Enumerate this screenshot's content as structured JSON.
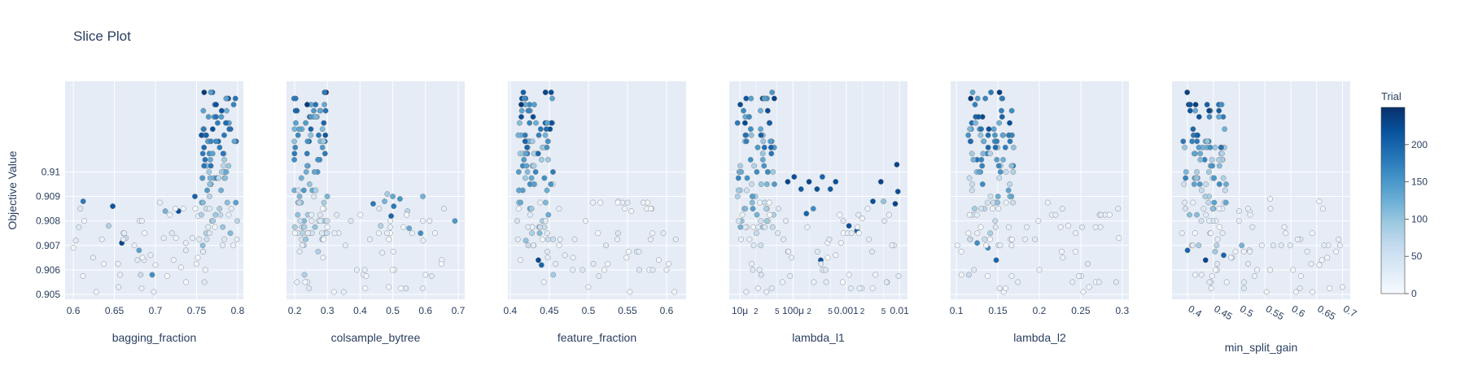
{
  "title": "Slice Plot",
  "colors": {
    "plot_bg": "#E5ECF6",
    "grid": "#ffffff",
    "text": "#2a3f5f",
    "colorscale": [
      "#F7FBFF",
      "#DEEBF7",
      "#C6DBEF",
      "#9ECAE1",
      "#6BAED6",
      "#4292C6",
      "#2171B5",
      "#08519C",
      "#08306B"
    ]
  },
  "colorbar": {
    "title": "Trial",
    "ticks": [
      "200",
      "150",
      "100",
      "50",
      "0"
    ],
    "range": [
      0,
      250
    ]
  },
  "chart_data": [
    {
      "type": "scatter",
      "xlabel": "bagging_fraction",
      "ylabel": "Objective Value",
      "xlim": [
        0.59,
        0.807
      ],
      "ylim": [
        0.9048,
        0.9137
      ],
      "x_scale": "linear",
      "xticks": [
        {
          "v": 0.6,
          "label": "0.6"
        },
        {
          "v": 0.65,
          "label": "0.65"
        },
        {
          "v": 0.7,
          "label": "0.7"
        },
        {
          "v": 0.75,
          "label": "0.75"
        },
        {
          "v": 0.8,
          "label": "0.8"
        }
      ],
      "yticks": [
        {
          "v": 0.905,
          "label": "0.905"
        },
        {
          "v": 0.906,
          "label": "0.906"
        },
        {
          "v": 0.907,
          "label": "0.907"
        },
        {
          "v": 0.908,
          "label": "0.908"
        },
        {
          "v": 0.909,
          "label": "0.909"
        },
        {
          "v": 0.91,
          "label": "0.91"
        }
      ],
      "tick_rotate": 0,
      "seed": 11,
      "focus_x": [
        0.755,
        0.8
      ],
      "focus_y": [
        0.9068,
        0.9133
      ],
      "focus_n": 95,
      "spread_n": 38,
      "points": [
        [
          0.612,
          0.9088,
          180
        ],
        [
          0.648,
          0.9086,
          215
        ],
        [
          0.6,
          0.9069,
          10
        ],
        [
          0.603,
          0.9072,
          30
        ],
        [
          0.628,
          0.9051,
          10
        ],
        [
          0.643,
          0.9078,
          80
        ],
        [
          0.659,
          0.9071,
          230
        ],
        [
          0.664,
          0.9073,
          60
        ],
        [
          0.68,
          0.9068,
          140
        ],
        [
          0.655,
          0.9053,
          20
        ],
        [
          0.657,
          0.9058,
          20
        ],
        [
          0.678,
          0.9064,
          30
        ],
        [
          0.686,
          0.9064,
          20
        ],
        [
          0.682,
          0.9058,
          60
        ],
        [
          0.696,
          0.9058,
          160
        ],
        [
          0.698,
          0.9051,
          20
        ],
        [
          0.7,
          0.9062,
          10
        ],
        [
          0.694,
          0.9066,
          20
        ],
        [
          0.71,
          0.9073,
          20
        ],
        [
          0.712,
          0.9084,
          120
        ],
        [
          0.722,
          0.9064,
          10
        ],
        [
          0.725,
          0.9073,
          10
        ],
        [
          0.728,
          0.9084,
          220
        ],
        [
          0.731,
          0.9061,
          10
        ],
        [
          0.737,
          0.9068,
          30
        ],
        [
          0.745,
          0.9073,
          20
        ],
        [
          0.748,
          0.909,
          200
        ],
        [
          0.752,
          0.9082,
          20
        ],
        [
          0.737,
          0.9071,
          20
        ]
      ]
    },
    {
      "type": "scatter",
      "xlabel": "colsample_bytree",
      "ylabel": "",
      "xlim": [
        0.175,
        0.72
      ],
      "ylim": [
        0.9048,
        0.9137
      ],
      "x_scale": "linear",
      "xticks": [
        {
          "v": 0.2,
          "label": "0.2"
        },
        {
          "v": 0.3,
          "label": "0.3"
        },
        {
          "v": 0.4,
          "label": "0.4"
        },
        {
          "v": 0.5,
          "label": "0.5"
        },
        {
          "v": 0.6,
          "label": "0.6"
        },
        {
          "v": 0.7,
          "label": "0.7"
        }
      ],
      "yticks": [
        {
          "v": 0.905,
          "label": ""
        },
        {
          "v": 0.906,
          "label": ""
        },
        {
          "v": 0.907,
          "label": ""
        },
        {
          "v": 0.908,
          "label": ""
        },
        {
          "v": 0.909,
          "label": ""
        },
        {
          "v": 0.91,
          "label": ""
        }
      ],
      "tick_rotate": 0,
      "seed": 23,
      "focus_x": [
        0.195,
        0.3
      ],
      "focus_y": [
        0.9068,
        0.9133
      ],
      "focus_n": 95,
      "spread_n": 45,
      "points": [
        [
          0.44,
          0.9087,
          180
        ],
        [
          0.475,
          0.9088,
          120
        ],
        [
          0.483,
          0.9091,
          90
        ],
        [
          0.5,
          0.909,
          130
        ],
        [
          0.503,
          0.9086,
          180
        ],
        [
          0.522,
          0.9089,
          150
        ],
        [
          0.592,
          0.909,
          120
        ],
        [
          0.495,
          0.9082,
          200
        ],
        [
          0.545,
          0.9084,
          70
        ],
        [
          0.55,
          0.9077,
          130
        ],
        [
          0.585,
          0.9075,
          160
        ],
        [
          0.593,
          0.9072,
          20
        ],
        [
          0.69,
          0.908,
          150
        ],
        [
          0.463,
          0.9078,
          80
        ],
        [
          0.468,
          0.9067,
          20
        ],
        [
          0.488,
          0.9053,
          10
        ],
        [
          0.6,
          0.9058,
          10
        ],
        [
          0.65,
          0.9064,
          10
        ],
        [
          0.41,
          0.9058,
          20
        ],
        [
          0.39,
          0.906,
          20
        ],
        [
          0.35,
          0.9051,
          20
        ],
        [
          0.32,
          0.9051,
          10
        ],
        [
          0.23,
          0.9058,
          80
        ]
      ]
    },
    {
      "type": "scatter",
      "xlabel": "feature_fraction",
      "ylabel": "",
      "xlim": [
        0.397,
        0.625
      ],
      "ylim": [
        0.9048,
        0.9137
      ],
      "x_scale": "linear",
      "xticks": [
        {
          "v": 0.4,
          "label": "0.4"
        },
        {
          "v": 0.45,
          "label": "0.45"
        },
        {
          "v": 0.5,
          "label": "0.5"
        },
        {
          "v": 0.55,
          "label": "0.55"
        },
        {
          "v": 0.6,
          "label": "0.6"
        }
      ],
      "yticks": [
        {
          "v": 0.905,
          "label": ""
        },
        {
          "v": 0.906,
          "label": ""
        },
        {
          "v": 0.907,
          "label": ""
        },
        {
          "v": 0.908,
          "label": ""
        },
        {
          "v": 0.909,
          "label": ""
        },
        {
          "v": 0.91,
          "label": ""
        }
      ],
      "tick_rotate": 0,
      "seed": 37,
      "focus_x": [
        0.408,
        0.455
      ],
      "focus_y": [
        0.9068,
        0.9133
      ],
      "focus_n": 100,
      "spread_n": 45,
      "points": [
        [
          0.555,
          0.9084,
          10
        ],
        [
          0.575,
          0.9085,
          10
        ],
        [
          0.538,
          0.9088,
          10
        ],
        [
          0.582,
          0.9075,
          10
        ],
        [
          0.5,
          0.9053,
          10
        ],
        [
          0.553,
          0.9051,
          10
        ],
        [
          0.61,
          0.9051,
          10
        ],
        [
          0.6,
          0.906,
          10
        ],
        [
          0.455,
          0.9058,
          90
        ],
        [
          0.44,
          0.9062,
          200
        ],
        [
          0.436,
          0.9064,
          230
        ],
        [
          0.413,
          0.9064,
          10
        ],
        [
          0.42,
          0.9072,
          100
        ],
        [
          0.43,
          0.907,
          230
        ],
        [
          0.47,
          0.9066,
          20
        ],
        [
          0.48,
          0.906,
          20
        ],
        [
          0.59,
          0.9064,
          10
        ]
      ]
    },
    {
      "type": "scatter",
      "xlabel": "lambda_l1",
      "ylabel": "",
      "xlim": [
        -5.2,
        -1.85
      ],
      "ylim": [
        0.9048,
        0.9137
      ],
      "x_scale": "log",
      "xticks": [
        {
          "v": -5,
          "label": "10μ"
        },
        {
          "v": -4.699,
          "label": "2"
        },
        {
          "v": -4.301,
          "label": "5"
        },
        {
          "v": -4,
          "label": "100μ"
        },
        {
          "v": -3.699,
          "label": "2"
        },
        {
          "v": -3.301,
          "label": "5"
        },
        {
          "v": -3,
          "label": "0.001"
        },
        {
          "v": -2.699,
          "label": "2"
        },
        {
          "v": -2.301,
          "label": "5"
        },
        {
          "v": -2,
          "label": "0.01"
        }
      ],
      "yticks": [
        {
          "v": 0.905,
          "label": ""
        },
        {
          "v": 0.906,
          "label": ""
        },
        {
          "v": 0.907,
          "label": ""
        },
        {
          "v": 0.908,
          "label": ""
        },
        {
          "v": 0.909,
          "label": ""
        },
        {
          "v": 0.91,
          "label": ""
        }
      ],
      "tick_rotate": 0,
      "seed": 53,
      "focus_x": [
        -5.05,
        -4.35
      ],
      "focus_y": [
        0.9068,
        0.9133
      ],
      "focus_n": 90,
      "spread_n": 50,
      "points": [
        [
          -4.1,
          0.9096,
          230
        ],
        [
          -3.98,
          0.9098,
          220
        ],
        [
          -3.85,
          0.9093,
          210
        ],
        [
          -3.7,
          0.9096,
          230
        ],
        [
          -3.55,
          0.9093,
          220
        ],
        [
          -3.45,
          0.9098,
          200
        ],
        [
          -3.3,
          0.9093,
          210
        ],
        [
          -3.2,
          0.9096,
          220
        ],
        [
          -3.62,
          0.9085,
          160
        ],
        [
          -3.75,
          0.9083,
          200
        ],
        [
          -2.35,
          0.9096,
          230
        ],
        [
          -2.05,
          0.9103,
          230
        ],
        [
          -2.03,
          0.9092,
          220
        ],
        [
          -2.08,
          0.9087,
          230
        ],
        [
          -2.5,
          0.9088,
          220
        ],
        [
          -2.6,
          0.9085,
          10
        ],
        [
          -2.7,
          0.9081,
          10
        ],
        [
          -2.8,
          0.9076,
          200
        ],
        [
          -2.95,
          0.9078,
          220
        ],
        [
          -2.3,
          0.9088,
          100
        ],
        [
          -3.48,
          0.9064,
          220
        ],
        [
          -3.2,
          0.9066,
          10
        ],
        [
          -2.95,
          0.9058,
          10
        ],
        [
          -2.45,
          0.9058,
          10
        ],
        [
          -3.1,
          0.9071,
          10
        ],
        [
          -3.35,
          0.9071,
          10
        ],
        [
          -4.5,
          0.9051,
          20
        ],
        [
          -4.88,
          0.9051,
          20
        ],
        [
          -4.6,
          0.9058,
          40
        ]
      ]
    },
    {
      "type": "scatter",
      "xlabel": "lambda_l2",
      "ylabel": "",
      "xlim": [
        0.093,
        0.308
      ],
      "ylim": [
        0.9048,
        0.9137
      ],
      "x_scale": "linear",
      "xticks": [
        {
          "v": 0.1,
          "label": "0.1"
        },
        {
          "v": 0.15,
          "label": "0.15"
        },
        {
          "v": 0.2,
          "label": "0.2"
        },
        {
          "v": 0.25,
          "label": "0.25"
        },
        {
          "v": 0.3,
          "label": "0.3"
        }
      ],
      "yticks": [
        {
          "v": 0.905,
          "label": ""
        },
        {
          "v": 0.906,
          "label": ""
        },
        {
          "v": 0.907,
          "label": ""
        },
        {
          "v": 0.908,
          "label": ""
        },
        {
          "v": 0.909,
          "label": ""
        },
        {
          "v": 0.91,
          "label": ""
        }
      ],
      "tick_rotate": 0,
      "seed": 71,
      "focus_x": [
        0.113,
        0.17
      ],
      "focus_y": [
        0.9068,
        0.9133
      ],
      "focus_n": 100,
      "spread_n": 45,
      "points": [
        [
          0.115,
          0.9058,
          60
        ],
        [
          0.106,
          0.9058,
          10
        ],
        [
          0.148,
          0.9064,
          200
        ],
        [
          0.138,
          0.9069,
          160
        ],
        [
          0.157,
          0.9051,
          10
        ],
        [
          0.253,
          0.9051,
          10
        ],
        [
          0.26,
          0.9053,
          10
        ],
        [
          0.296,
          0.9073,
          10
        ],
        [
          0.235,
          0.9078,
          10
        ],
        [
          0.2,
          0.906,
          10
        ],
        [
          0.101,
          0.907,
          10
        ],
        [
          0.125,
          0.9071,
          160
        ]
      ]
    },
    {
      "type": "scatter",
      "xlabel": "min_split_gain",
      "ylabel": "",
      "xlim": [
        0.37,
        0.715
      ],
      "ylim": [
        0.9048,
        0.9137
      ],
      "x_scale": "linear",
      "xticks": [
        {
          "v": 0.4,
          "label": "0.4"
        },
        {
          "v": 0.45,
          "label": "0.45"
        },
        {
          "v": 0.5,
          "label": "0.5"
        },
        {
          "v": 0.55,
          "label": "0.55"
        },
        {
          "v": 0.6,
          "label": "0.6"
        },
        {
          "v": 0.65,
          "label": "0.65"
        },
        {
          "v": 0.7,
          "label": "0.7"
        }
      ],
      "yticks": [
        {
          "v": 0.905,
          "label": ""
        },
        {
          "v": 0.906,
          "label": ""
        },
        {
          "v": 0.907,
          "label": ""
        },
        {
          "v": 0.908,
          "label": ""
        },
        {
          "v": 0.909,
          "label": ""
        },
        {
          "v": 0.91,
          "label": ""
        }
      ],
      "tick_rotate": 30,
      "seed": 89,
      "focus_x": [
        0.39,
        0.475
      ],
      "focus_y": [
        0.9068,
        0.9133
      ],
      "focus_n": 95,
      "spread_n": 55,
      "points": [
        [
          0.56,
          0.9089,
          10
        ],
        [
          0.655,
          0.9088,
          10
        ],
        [
          0.662,
          0.9085,
          10
        ],
        [
          0.5,
          0.9084,
          20
        ],
        [
          0.52,
          0.9084,
          10
        ],
        [
          0.435,
          0.9064,
          230
        ],
        [
          0.427,
          0.9058,
          20
        ],
        [
          0.415,
          0.9058,
          10
        ],
        [
          0.56,
          0.906,
          10
        ],
        [
          0.553,
          0.9051,
          10
        ],
        [
          0.61,
          0.9051,
          10
        ],
        [
          0.642,
          0.9051,
          10
        ],
        [
          0.7,
          0.9053,
          10
        ],
        [
          0.655,
          0.9062,
          10
        ],
        [
          0.66,
          0.9064,
          10
        ],
        [
          0.505,
          0.907,
          120
        ],
        [
          0.52,
          0.9068,
          20
        ],
        [
          0.47,
          0.9066,
          200
        ],
        [
          0.4,
          0.9068,
          200
        ]
      ]
    }
  ]
}
